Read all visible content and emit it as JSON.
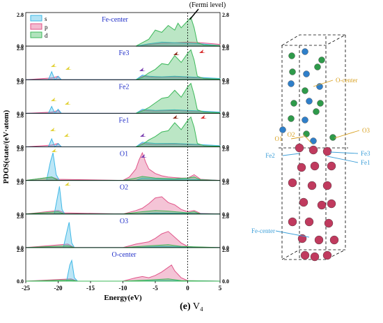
{
  "chart_data": {
    "type": "area",
    "ylabel": "PDOS(state/(eV·atom)",
    "xlabel": "Energy(eV)",
    "fermi_label": "(Fermi level)",
    "xlim": [
      -25,
      5
    ],
    "x_ticks": [
      -25,
      -20,
      -15,
      -10,
      -5,
      0,
      5
    ],
    "y_tick_low": "0.0",
    "y_tick_high": "2.8",
    "legend": [
      {
        "name": "s",
        "color": "#3fb8e6"
      },
      {
        "name": "p",
        "color": "#e0568a"
      },
      {
        "name": "d",
        "color": "#3cb85a"
      }
    ],
    "panels": [
      {
        "label": "Fe-center",
        "s": [
          [
            -8,
            0
          ],
          [
            -6,
            0.2
          ],
          [
            -4,
            0.35
          ],
          [
            -2,
            0.3
          ],
          [
            0,
            0.25
          ],
          [
            2,
            0.2
          ],
          [
            4,
            0.1
          ],
          [
            5,
            0.05
          ]
        ],
        "p": [
          [
            -8,
            0
          ],
          [
            -6,
            0.15
          ],
          [
            -4,
            0.25
          ],
          [
            -2,
            0.3
          ],
          [
            0,
            0.35
          ],
          [
            2,
            0.3
          ],
          [
            4,
            0.2
          ],
          [
            5,
            0.15
          ]
        ],
        "d": [
          [
            -8,
            0
          ],
          [
            -7,
            0.3
          ],
          [
            -6,
            0.6
          ],
          [
            -5,
            1.4
          ],
          [
            -4,
            1.2
          ],
          [
            -3,
            1.8
          ],
          [
            -2,
            1.4
          ],
          [
            -1.5,
            2.0
          ],
          [
            -1,
            1.6
          ],
          [
            0,
            2.2
          ],
          [
            0.5,
            2.5
          ],
          [
            1,
            1.6
          ],
          [
            1.5,
            0.3
          ],
          [
            2.5,
            0.1
          ],
          [
            5,
            0.05
          ]
        ]
      },
      {
        "label": "Fe3",
        "s": [
          [
            -25,
            0
          ],
          [
            -21.5,
            0
          ],
          [
            -21,
            0.7
          ],
          [
            -20.5,
            0
          ],
          [
            -20,
            0.3
          ],
          [
            -19.5,
            0
          ],
          [
            -8,
            0
          ],
          [
            -7,
            0.4
          ],
          [
            -6,
            0.3
          ],
          [
            -4,
            0.25
          ],
          [
            -2,
            0.3
          ],
          [
            0,
            0.25
          ],
          [
            2,
            0.2
          ],
          [
            5,
            0.1
          ]
        ],
        "p": [
          [
            -25,
            0
          ],
          [
            -21,
            0.15
          ],
          [
            -20,
            0.3
          ],
          [
            -19.5,
            0
          ],
          [
            -8,
            0
          ],
          [
            -7,
            0.3
          ],
          [
            -5,
            0.2
          ],
          [
            -2,
            0.25
          ],
          [
            0,
            0.2
          ],
          [
            2,
            0.15
          ],
          [
            5,
            0.1
          ]
        ],
        "d": [
          [
            -8,
            0
          ],
          [
            -7,
            0.2
          ],
          [
            -6,
            0.6
          ],
          [
            -5,
            0.9
          ],
          [
            -4,
            1.4
          ],
          [
            -3,
            1.3
          ],
          [
            -2,
            2.1
          ],
          [
            -1.5,
            1.8
          ],
          [
            -1,
            1.5
          ],
          [
            0,
            2.3
          ],
          [
            0.5,
            2.6
          ],
          [
            1,
            1.7
          ],
          [
            1.5,
            0.3
          ],
          [
            2.5,
            0.1
          ],
          [
            5,
            0.05
          ]
        ]
      },
      {
        "label": "Fe2",
        "s": [
          [
            -25,
            0
          ],
          [
            -21.5,
            0
          ],
          [
            -21,
            0.6
          ],
          [
            -20.5,
            0
          ],
          [
            -20,
            0.35
          ],
          [
            -19.5,
            0
          ],
          [
            -8,
            0
          ],
          [
            -7,
            0.35
          ],
          [
            -5,
            0.25
          ],
          [
            -2,
            0.3
          ],
          [
            0,
            0.25
          ],
          [
            2,
            0.2
          ],
          [
            5,
            0.1
          ]
        ],
        "p": [
          [
            -25,
            0
          ],
          [
            -21,
            0.1
          ],
          [
            -20,
            0.25
          ],
          [
            -19.5,
            0
          ],
          [
            -8,
            0
          ],
          [
            -7,
            0.25
          ],
          [
            -5,
            0.2
          ],
          [
            -2,
            0.25
          ],
          [
            0,
            0.2
          ],
          [
            5,
            0.1
          ]
        ],
        "d": [
          [
            -8,
            0
          ],
          [
            -7,
            0.2
          ],
          [
            -6,
            0.5
          ],
          [
            -5,
            0.9
          ],
          [
            -4,
            1.3
          ],
          [
            -3,
            1.4
          ],
          [
            -2,
            2.0
          ],
          [
            -1.5,
            1.7
          ],
          [
            -1,
            1.4
          ],
          [
            0,
            2.3
          ],
          [
            0.5,
            2.6
          ],
          [
            1,
            1.6
          ],
          [
            1.5,
            0.3
          ],
          [
            2.5,
            0.1
          ],
          [
            5,
            0.05
          ]
        ]
      },
      {
        "label": "Fe1",
        "s": [
          [
            -25,
            0
          ],
          [
            -21.5,
            0
          ],
          [
            -21,
            0.7
          ],
          [
            -20.5,
            0
          ],
          [
            -20,
            0.3
          ],
          [
            -19.5,
            0
          ],
          [
            -8,
            0
          ],
          [
            -7,
            0.4
          ],
          [
            -5,
            0.3
          ],
          [
            -2,
            0.3
          ],
          [
            0,
            0.25
          ],
          [
            2,
            0.2
          ],
          [
            5,
            0.1
          ]
        ],
        "p": [
          [
            -25,
            0
          ],
          [
            -21,
            0.15
          ],
          [
            -20,
            0.3
          ],
          [
            -19.5,
            0
          ],
          [
            -8,
            0
          ],
          [
            -7,
            0.3
          ],
          [
            -5,
            0.2
          ],
          [
            -2,
            0.25
          ],
          [
            0,
            0.2
          ],
          [
            5,
            0.1
          ]
        ],
        "d": [
          [
            -8,
            0
          ],
          [
            -7,
            0.2
          ],
          [
            -6,
            0.6
          ],
          [
            -5,
            0.9
          ],
          [
            -4,
            1.3
          ],
          [
            -3,
            1.4
          ],
          [
            -2,
            2.1
          ],
          [
            -1.5,
            1.8
          ],
          [
            -1,
            1.5
          ],
          [
            0,
            2.3
          ],
          [
            0.5,
            2.6
          ],
          [
            1,
            1.7
          ],
          [
            1.5,
            0.3
          ],
          [
            2.5,
            0.1
          ],
          [
            5,
            0.05
          ]
        ]
      },
      {
        "label": "O1",
        "s": [
          [
            -25,
            0
          ],
          [
            -21.8,
            0
          ],
          [
            -21.2,
            1.6
          ],
          [
            -20.8,
            2.4
          ],
          [
            -20.3,
            0.5
          ],
          [
            -19.8,
            0
          ],
          [
            -8,
            0
          ],
          [
            -7,
            0.2
          ],
          [
            -4,
            0.1
          ],
          [
            0,
            0.1
          ],
          [
            5,
            0
          ]
        ],
        "p": [
          [
            -25,
            0
          ],
          [
            -21,
            0.3
          ],
          [
            -20,
            0.1
          ],
          [
            -10,
            0
          ],
          [
            -9,
            0.3
          ],
          [
            -8,
            1.0
          ],
          [
            -7.5,
            1.8
          ],
          [
            -7,
            2.4
          ],
          [
            -6.5,
            1.6
          ],
          [
            -6,
            1.0
          ],
          [
            -5,
            0.6
          ],
          [
            -4,
            0.4
          ],
          [
            -3,
            0.3
          ],
          [
            -1,
            0.2
          ],
          [
            0,
            0.2
          ],
          [
            1,
            0.5
          ],
          [
            2,
            0.1
          ],
          [
            5,
            0
          ]
        ],
        "d": [
          [
            -25,
            0
          ],
          [
            -21,
            0.3
          ],
          [
            -20,
            0
          ],
          [
            -10,
            0
          ],
          [
            -8,
            0.2
          ],
          [
            -7,
            0.35
          ],
          [
            -5,
            0.2
          ],
          [
            -2,
            0.15
          ],
          [
            0,
            0.2
          ],
          [
            1,
            0.3
          ],
          [
            2,
            0.05
          ],
          [
            5,
            0
          ]
        ]
      },
      {
        "label": "O2",
        "s": [
          [
            -25,
            0
          ],
          [
            -20.6,
            0
          ],
          [
            -20.1,
            1.5
          ],
          [
            -19.8,
            2.4
          ],
          [
            -19.4,
            0.4
          ],
          [
            -19,
            0
          ],
          [
            -8,
            0
          ],
          [
            -5,
            0.1
          ],
          [
            0,
            0.05
          ],
          [
            5,
            0
          ]
        ],
        "p": [
          [
            -25,
            0
          ],
          [
            -20,
            0.3
          ],
          [
            -19,
            0.1
          ],
          [
            -10,
            0
          ],
          [
            -8,
            0.3
          ],
          [
            -7,
            0.5
          ],
          [
            -6,
            0.9
          ],
          [
            -5,
            1.4
          ],
          [
            -4,
            1.5
          ],
          [
            -3,
            1.0
          ],
          [
            -2,
            0.8
          ],
          [
            -1,
            0.4
          ],
          [
            0,
            0.2
          ],
          [
            1,
            0.3
          ],
          [
            2,
            0.05
          ],
          [
            5,
            0
          ]
        ],
        "d": [
          [
            -25,
            0
          ],
          [
            -20,
            0.2
          ],
          [
            -19,
            0
          ],
          [
            -10,
            0
          ],
          [
            -7,
            0.2
          ],
          [
            -5,
            0.3
          ],
          [
            -3,
            0.25
          ],
          [
            -1,
            0.15
          ],
          [
            0,
            0.1
          ],
          [
            1,
            0.2
          ],
          [
            2,
            0
          ],
          [
            5,
            0
          ]
        ]
      },
      {
        "label": "O3",
        "s": [
          [
            -25,
            0
          ],
          [
            -19.2,
            0
          ],
          [
            -18.6,
            1.5
          ],
          [
            -18.3,
            2.2
          ],
          [
            -17.9,
            0.4
          ],
          [
            -17.5,
            0
          ],
          [
            -8,
            0
          ],
          [
            -4,
            0.1
          ],
          [
            0,
            0.05
          ],
          [
            5,
            0
          ]
        ],
        "p": [
          [
            -25,
            0
          ],
          [
            -18.5,
            0.3
          ],
          [
            -17.5,
            0
          ],
          [
            -10,
            0
          ],
          [
            -8,
            0.3
          ],
          [
            -7,
            0.4
          ],
          [
            -6,
            0.5
          ],
          [
            -5,
            0.8
          ],
          [
            -4,
            1.2
          ],
          [
            -3,
            1.4
          ],
          [
            -2,
            0.9
          ],
          [
            -1,
            0.4
          ],
          [
            0,
            0.1
          ],
          [
            1,
            0.05
          ],
          [
            5,
            0
          ]
        ],
        "d": [
          [
            -25,
            0
          ],
          [
            -18.5,
            0.15
          ],
          [
            -17.5,
            0
          ],
          [
            -10,
            0
          ],
          [
            -6,
            0.15
          ],
          [
            -3,
            0.25
          ],
          [
            -1,
            0.1
          ],
          [
            5,
            0
          ]
        ]
      },
      {
        "label": "O-center",
        "s": [
          [
            -25,
            0
          ],
          [
            -18.7,
            0
          ],
          [
            -18.2,
            1.4
          ],
          [
            -17.9,
            1.8
          ],
          [
            -17.5,
            0.3
          ],
          [
            -17,
            0
          ],
          [
            -8,
            0
          ],
          [
            -4,
            0.05
          ],
          [
            5,
            0
          ]
        ],
        "p": [
          [
            -25,
            0
          ],
          [
            -18,
            0.2
          ],
          [
            -17,
            0
          ],
          [
            -10,
            0
          ],
          [
            -8,
            0.3
          ],
          [
            -7,
            0.4
          ],
          [
            -6,
            0.3
          ],
          [
            -5,
            0.5
          ],
          [
            -4,
            0.8
          ],
          [
            -3,
            1.2
          ],
          [
            -2.5,
            1.4
          ],
          [
            -2,
            0.9
          ],
          [
            -1,
            0.3
          ],
          [
            0,
            0.05
          ],
          [
            5,
            0
          ]
        ],
        "d": [
          [
            -25,
            0
          ],
          [
            -18,
            0.1
          ],
          [
            -17,
            0
          ],
          [
            -10,
            0
          ],
          [
            -6,
            0.1
          ],
          [
            -3,
            0.2
          ],
          [
            -1,
            0.05
          ],
          [
            5,
            0
          ]
        ]
      }
    ],
    "fermi_x": 0
  },
  "structure": {
    "labels": [
      "O-center",
      "O2",
      "O3",
      "O1",
      "Fe2",
      "Fe3",
      "Fe1",
      "Fe-center"
    ],
    "colors": {
      "o_atom": "#2e9a4a",
      "fe_atom": "#c03a5e",
      "n_atom": "#2f7fc9",
      "arrow": "#3fa0d9",
      "o_label": "#d8a020"
    }
  },
  "caption": {
    "letter": "(e)",
    "text": "V₄"
  }
}
